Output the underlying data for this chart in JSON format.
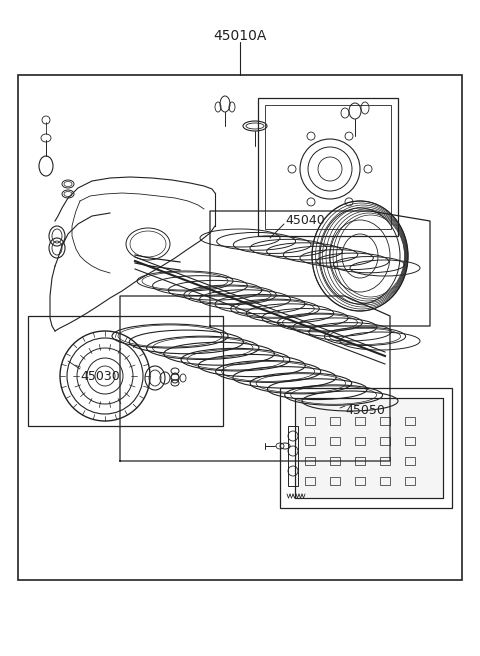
{
  "title": "45010A",
  "bg_color": "#ffffff",
  "border_color": "#333333",
  "line_color": "#222222",
  "label_45040": "45040",
  "label_45030": "45030",
  "label_45050": "45050",
  "fig_width": 4.8,
  "fig_height": 6.56,
  "dpi": 100
}
